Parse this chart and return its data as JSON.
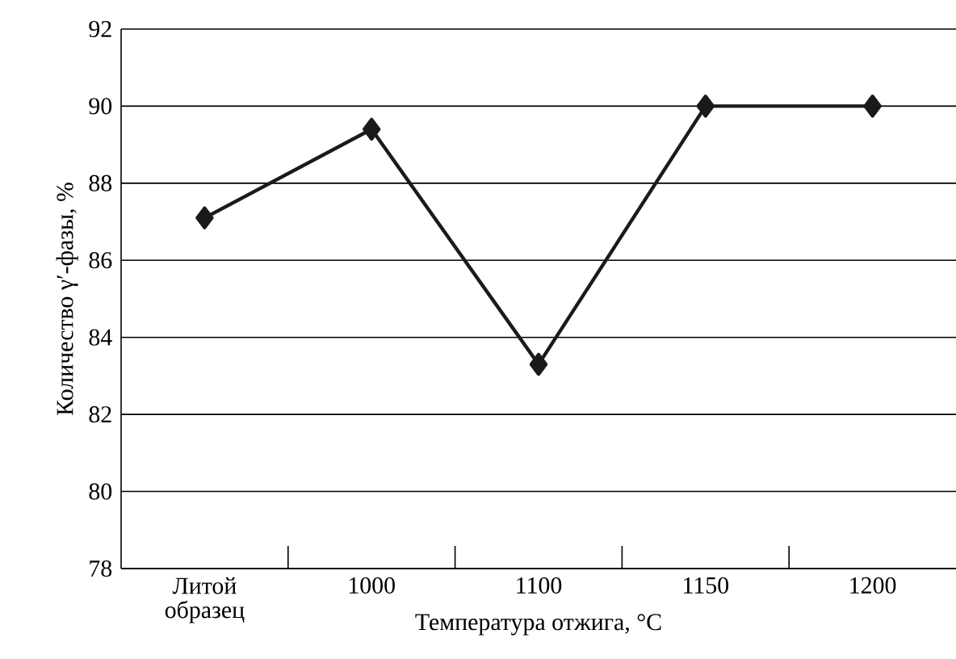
{
  "chart_data": {
    "type": "line",
    "xlabel": "Температура отжига, °C",
    "ylabel": "Количество γ′-фазы, %",
    "categories": [
      "Литой образец",
      "1000",
      "1100",
      "1150",
      "1200"
    ],
    "series": [
      {
        "color": "#1a1a1a",
        "values": [
          87.1,
          89.4,
          83.3,
          90.0,
          90.0
        ]
      }
    ],
    "ylim": [
      78,
      92
    ],
    "yticks": [
      78,
      80,
      82,
      84,
      86,
      88,
      90,
      92
    ],
    "grid": "y",
    "marker": "diamond",
    "line_style": "solid"
  }
}
